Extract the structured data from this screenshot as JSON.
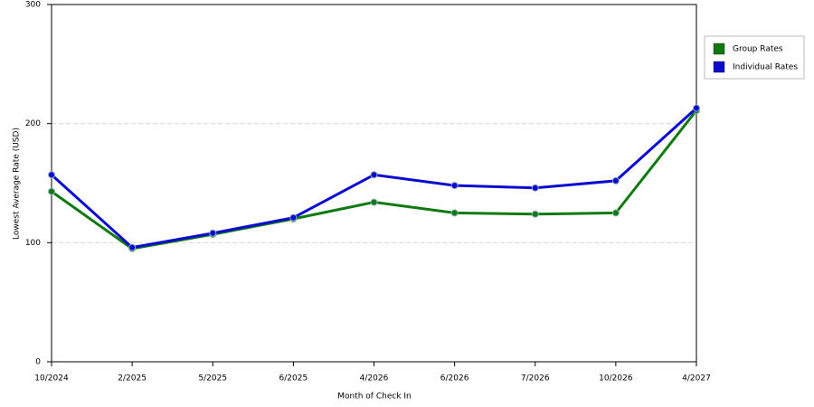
{
  "chart_data": {
    "type": "line",
    "x_label": "Month of Check In",
    "y_label": "Lowest Average Rate (USD)",
    "categories": [
      "10/2024",
      "2/2025",
      "5/2025",
      "6/2025",
      "4/2026",
      "6/2026",
      "7/2026",
      "10/2026",
      "4/2027"
    ],
    "series": [
      {
        "name": "Group Rates",
        "color": "#107a10",
        "values": [
          143,
          95,
          107,
          120,
          134,
          125,
          124,
          125,
          211
        ]
      },
      {
        "name": "Individual Rates",
        "color": "#0a0ad0",
        "values": [
          157,
          96,
          108,
          121,
          157,
          148,
          146,
          152,
          213
        ]
      }
    ],
    "ylim": [
      0,
      300
    ],
    "yticks": [
      0,
      100,
      200,
      300
    ],
    "grid": true,
    "legend": "right"
  }
}
